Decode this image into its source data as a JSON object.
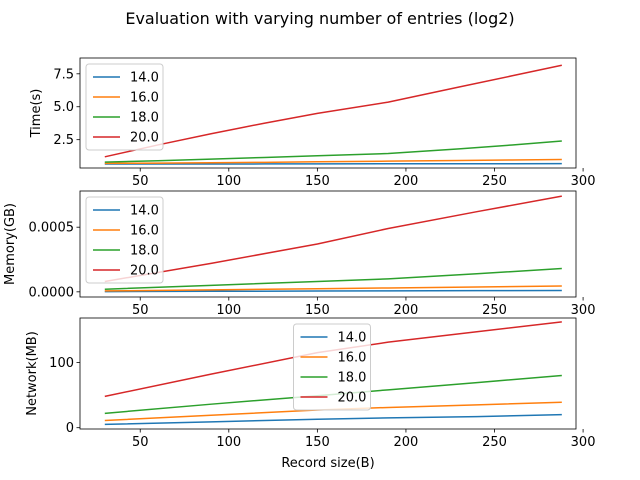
{
  "figure": {
    "title": "Evaluation with varying number of entries (log2)",
    "xlabel": "Record size(B)"
  },
  "chart_data": [
    {
      "type": "line",
      "ylabel": "Time(s)",
      "xlim": [
        16,
        296
      ],
      "ylim": [
        0.35,
        8.7
      ],
      "xticks": [
        50,
        100,
        150,
        200,
        250,
        300
      ],
      "yticks": [
        2.5,
        5.0,
        7.5
      ],
      "ytick_labels": [
        "2.5",
        "5.0",
        "7.5"
      ],
      "legend": "top-left",
      "series": [
        {
          "name": "14.0",
          "color": "#1f77b4",
          "x": [
            30,
            60,
            90,
            120,
            150,
            190,
            230,
            260,
            288
          ],
          "y": [
            0.65,
            0.65,
            0.65,
            0.66,
            0.66,
            0.67,
            0.67,
            0.67,
            0.68
          ]
        },
        {
          "name": "16.0",
          "color": "#ff7f0e",
          "x": [
            30,
            60,
            90,
            120,
            150,
            190,
            230,
            260,
            288
          ],
          "y": [
            0.7,
            0.72,
            0.75,
            0.78,
            0.82,
            0.87,
            0.92,
            0.96,
            1.0
          ]
        },
        {
          "name": "18.0",
          "color": "#2ca02c",
          "x": [
            30,
            60,
            90,
            120,
            150,
            190,
            230,
            260,
            288
          ],
          "y": [
            0.8,
            0.9,
            1.02,
            1.15,
            1.28,
            1.45,
            1.8,
            2.1,
            2.4
          ]
        },
        {
          "name": "20.0",
          "color": "#d62728",
          "x": [
            30,
            60,
            90,
            120,
            150,
            190,
            230,
            260,
            288
          ],
          "y": [
            1.2,
            2.1,
            2.95,
            3.75,
            4.5,
            5.35,
            6.5,
            7.35,
            8.15
          ]
        }
      ]
    },
    {
      "type": "line",
      "ylabel": "Memory(GB)",
      "xlim": [
        16,
        296
      ],
      "ylim": [
        -4e-05,
        0.00078
      ],
      "xticks": [
        50,
        100,
        150,
        200,
        250,
        300
      ],
      "yticks": [
        0.0,
        0.0005
      ],
      "ytick_labels": [
        "0.0000",
        "0.0005"
      ],
      "legend": "top-left",
      "series": [
        {
          "name": "14.0",
          "color": "#1f77b4",
          "x": [
            30,
            90,
            150,
            190,
            240,
            288
          ],
          "y": [
            2e-06,
            4e-06,
            6e-06,
            7e-06,
            9e-06,
            1e-05
          ]
        },
        {
          "name": "16.0",
          "color": "#ff7f0e",
          "x": [
            30,
            90,
            150,
            190,
            240,
            288
          ],
          "y": [
            7e-06,
            1.5e-05,
            2.4e-05,
            3e-05,
            3.7e-05,
            4.5e-05
          ]
        },
        {
          "name": "18.0",
          "color": "#2ca02c",
          "x": [
            30,
            90,
            150,
            190,
            240,
            288
          ],
          "y": [
            2e-05,
            5e-05,
            8e-05,
            0.0001,
            0.00014,
            0.00018
          ]
        },
        {
          "name": "20.0",
          "color": "#d62728",
          "x": [
            30,
            90,
            150,
            190,
            240,
            288
          ],
          "y": [
            8e-05,
            0.00022,
            0.00037,
            0.00049,
            0.00062,
            0.00074
          ]
        }
      ]
    },
    {
      "type": "line",
      "ylabel": "Network(MB)",
      "xlim": [
        16,
        296
      ],
      "ylim": [
        -2,
        168
      ],
      "xticks": [
        50,
        100,
        150,
        200,
        250,
        300
      ],
      "yticks": [
        0,
        100
      ],
      "ytick_labels": [
        "0",
        "100"
      ],
      "legend": "top-center",
      "series": [
        {
          "name": "14.0",
          "color": "#1f77b4",
          "x": [
            30,
            90,
            150,
            190,
            240,
            288
          ],
          "y": [
            5,
            9,
            13,
            15,
            17,
            20
          ]
        },
        {
          "name": "16.0",
          "color": "#ff7f0e",
          "x": [
            30,
            90,
            150,
            190,
            240,
            288
          ],
          "y": [
            11,
            19,
            27,
            31,
            35,
            39
          ]
        },
        {
          "name": "18.0",
          "color": "#2ca02c",
          "x": [
            30,
            90,
            150,
            190,
            240,
            288
          ],
          "y": [
            22,
            36,
            49,
            58,
            69,
            80
          ]
        },
        {
          "name": "20.0",
          "color": "#d62728",
          "x": [
            30,
            90,
            150,
            190,
            240,
            288
          ],
          "y": [
            48,
            82,
            115,
            131,
            147,
            162
          ]
        }
      ]
    }
  ]
}
